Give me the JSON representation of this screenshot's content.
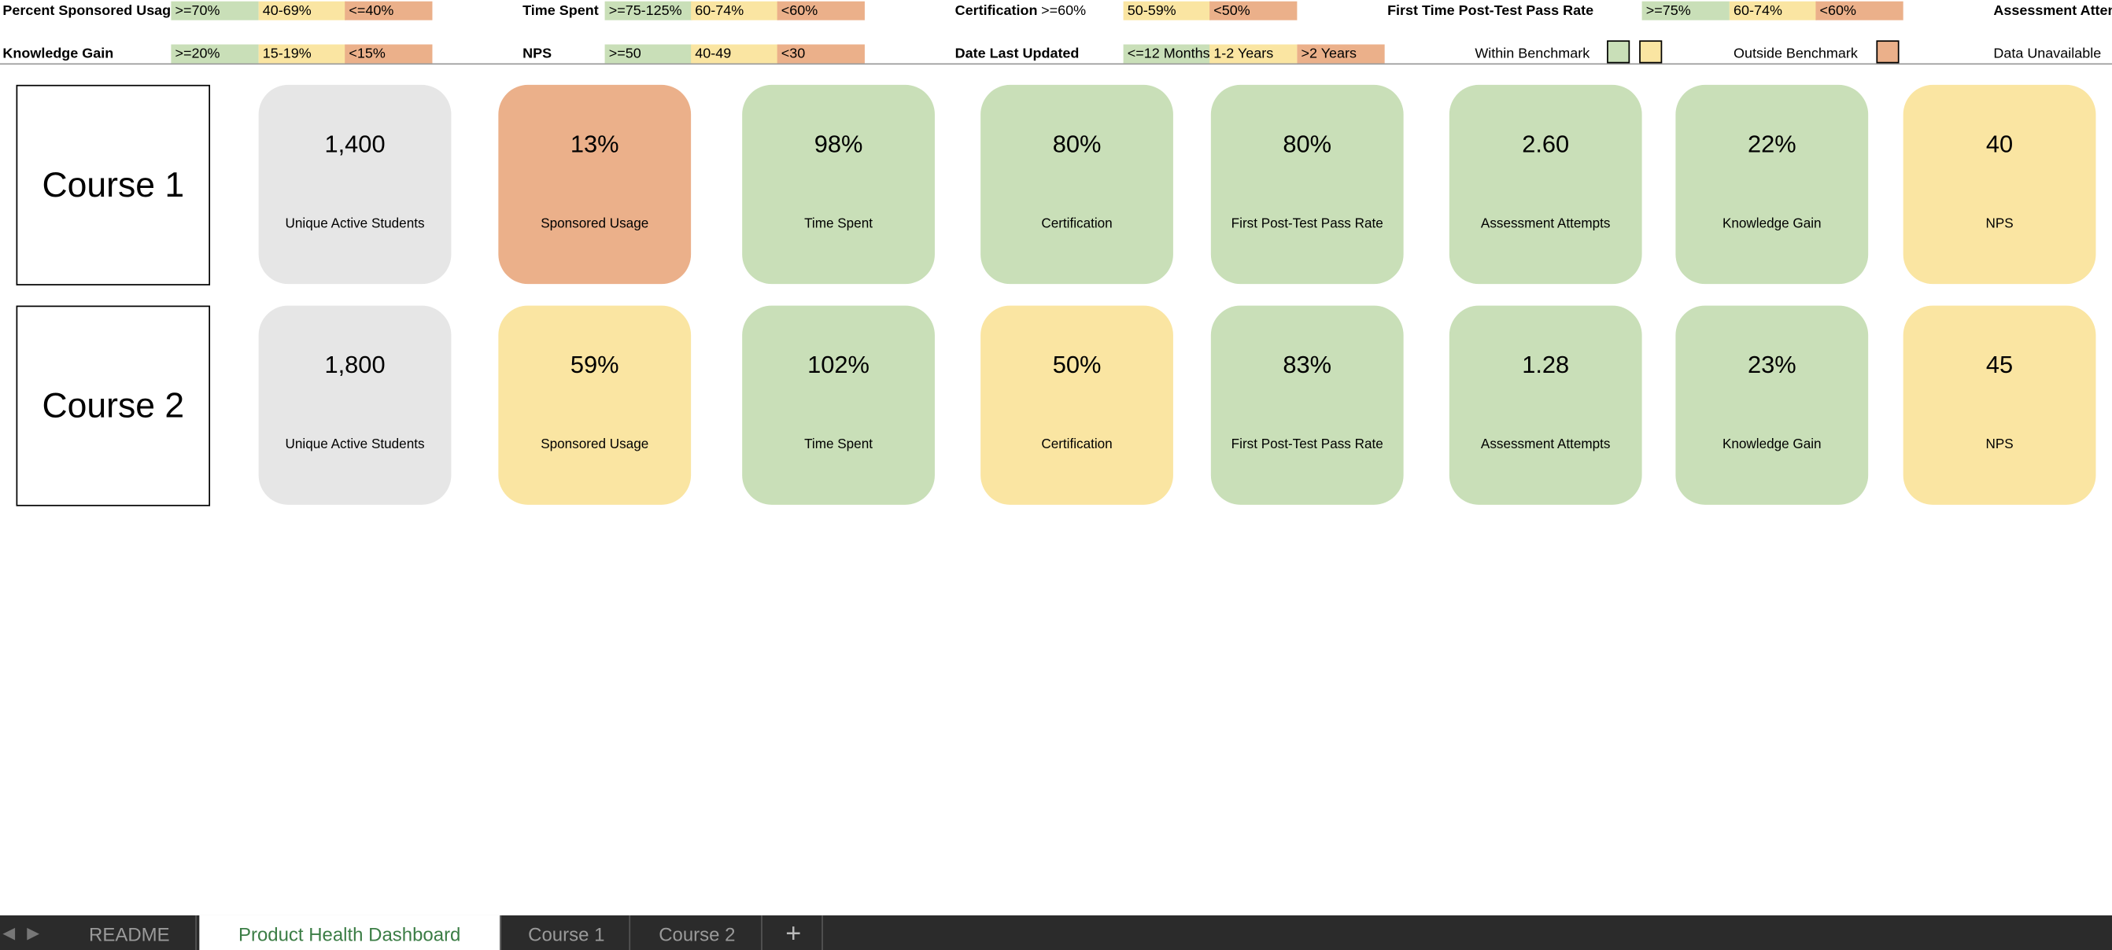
{
  "legend_rows": [
    [
      {
        "label": "Percent Sponsored Usage",
        "cells": [
          {
            "text": ">=70%",
            "color": "#c9dfb8"
          },
          {
            "text": "40-69%",
            "color": "#fae5a2"
          },
          {
            "text": "<=40%",
            "color": "#ebb08a"
          }
        ]
      },
      {
        "label": "Time Spent",
        "cells": [
          {
            "text": ">=75-125%",
            "color": "#c9dfb8"
          },
          {
            "text": "60-74%",
            "color": "#fae5a2"
          },
          {
            "text": "<60%",
            "color": "#ebb08a"
          }
        ]
      },
      {
        "label": "Certification",
        "cells": [
          {
            "text": ">=60%",
            "color": "#ffffff"
          },
          {
            "text": "50-59%",
            "color": "#fae5a2"
          },
          {
            "text": "<50%",
            "color": "#ebb08a"
          }
        ]
      },
      {
        "label": "First Time Post-Test Pass Rate",
        "cells": [
          {
            "text": ">=75%",
            "color": "#c9dfb8"
          },
          {
            "text": "60-74%",
            "color": "#fae5a2"
          },
          {
            "text": "<60%",
            "color": "#ebb08a"
          }
        ]
      },
      {
        "label": "Assessment Attempts",
        "cells": []
      }
    ],
    [
      {
        "label": "Knowledge Gain",
        "cells": [
          {
            "text": ">=20%",
            "color": "#c9dfb8"
          },
          {
            "text": "15-19%",
            "color": "#fae5a2"
          },
          {
            "text": "<15%",
            "color": "#ebb08a"
          }
        ]
      },
      {
        "label": "NPS",
        "cells": [
          {
            "text": ">=50",
            "color": "#c9dfb8"
          },
          {
            "text": "40-49",
            "color": "#fae5a2"
          },
          {
            "text": "<30",
            "color": "#ebb08a"
          }
        ]
      },
      {
        "label": "Date Last Updated",
        "cells": [
          {
            "text": "<=12 Months",
            "color": "#c9dfb8"
          },
          {
            "text": "1-2 Years",
            "color": "#fae5a2"
          },
          {
            "text": ">2 Years",
            "color": "#ebb08a"
          }
        ]
      }
    ]
  ],
  "benchmark_key": {
    "within": "Within Benchmark",
    "outside": "Outside Benchmark",
    "unavailable": "Data Unavailable"
  },
  "courses": [
    {
      "name": "Course 1",
      "metrics": [
        {
          "value": "1,400",
          "label": "Unique Active Students",
          "color": "#e6e6e6"
        },
        {
          "value": "13%",
          "label": "Sponsored Usage",
          "color": "#ebb08a"
        },
        {
          "value": "98%",
          "label": "Time Spent",
          "color": "#c9dfb8"
        },
        {
          "value": "80%",
          "label": "Certification",
          "color": "#c9dfb8"
        },
        {
          "value": "80%",
          "label": "First Post-Test Pass Rate",
          "color": "#c9dfb8"
        },
        {
          "value": "2.60",
          "label": "Assessment Attempts",
          "color": "#c9dfb8"
        },
        {
          "value": "22%",
          "label": "Knowledge Gain",
          "color": "#c9dfb8"
        },
        {
          "value": "40",
          "label": "NPS",
          "color": "#fae5a2"
        }
      ]
    },
    {
      "name": "Course 2",
      "metrics": [
        {
          "value": "1,800",
          "label": "Unique Active Students",
          "color": "#e6e6e6"
        },
        {
          "value": "59%",
          "label": "Sponsored Usage",
          "color": "#fae5a2"
        },
        {
          "value": "102%",
          "label": "Time Spent",
          "color": "#c9dfb8"
        },
        {
          "value": "50%",
          "label": "Certification",
          "color": "#fae5a2"
        },
        {
          "value": "83%",
          "label": "First Post-Test Pass Rate",
          "color": "#c9dfb8"
        },
        {
          "value": "1.28",
          "label": "Assessment Attempts",
          "color": "#c9dfb8"
        },
        {
          "value": "23%",
          "label": "Knowledge Gain",
          "color": "#c9dfb8"
        },
        {
          "value": "45",
          "label": "NPS",
          "color": "#fae5a2"
        }
      ]
    }
  ],
  "tabs": {
    "items": [
      "README",
      "Product Health Dashboard",
      "Course 1",
      "Course 2"
    ],
    "active": 1,
    "add": "+"
  }
}
